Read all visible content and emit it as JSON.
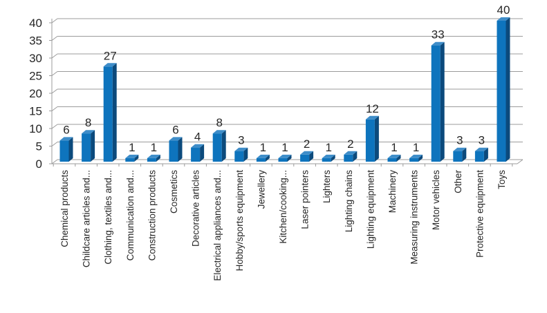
{
  "chart_data": {
    "type": "bar",
    "title": "",
    "categories": [
      "Chemical products",
      "Childcare articles and...",
      "Clothing, textiles and...",
      "Communication and...",
      "Construction products",
      "Cosmetics",
      "Decorative articles",
      "Electrical appliances and...",
      "Hobby/sports equipment",
      "Jewellery",
      "Kitchen/cooking...",
      "Laser pointers",
      "Lighters",
      "Lighting chains",
      "Lighting equipment",
      "Machinery",
      "Measuring instruments",
      "Motor vehicles",
      "Other",
      "Protective equipment",
      "Toys"
    ],
    "values": [
      6,
      8,
      27,
      1,
      1,
      6,
      4,
      8,
      3,
      1,
      1,
      2,
      1,
      2,
      12,
      1,
      1,
      33,
      3,
      3,
      40
    ],
    "data_labels": [
      "6",
      "8",
      "27",
      "1",
      "1",
      "6",
      "4",
      "8",
      "3",
      "1",
      "1",
      "2",
      "1",
      "2",
      "12",
      "1",
      "1",
      "33",
      "3",
      "3",
      "40"
    ],
    "xlabel": "",
    "ylabel": "",
    "ylim": [
      0,
      40
    ],
    "yticks": [
      0,
      5,
      10,
      15,
      20,
      25,
      30,
      35,
      40
    ],
    "grid": true,
    "legend_position": "none",
    "style": "3d-column",
    "colors": {
      "bar_front": "#0E74BD",
      "bar_side": "#0C4A7C",
      "bar_top": "#3E8DC9",
      "gridline": "#9B9B9B",
      "axis": "#9B9B9B",
      "text": "#262626",
      "background": "#FFFFFF"
    }
  }
}
